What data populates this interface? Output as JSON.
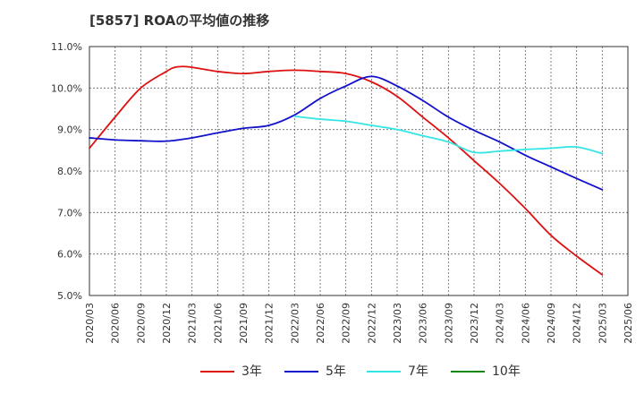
{
  "chart_data": {
    "type": "line",
    "title": "[5857]  ROAの平均値の推移",
    "xlabel": "",
    "ylabel": "",
    "ylim": [
      5.0,
      11.0
    ],
    "y_ticks": [
      "5.0%",
      "6.0%",
      "7.0%",
      "8.0%",
      "9.0%",
      "10.0%",
      "11.0%"
    ],
    "x_ticks": [
      "2020/03",
      "2020/06",
      "2020/09",
      "2020/12",
      "2021/03",
      "2021/06",
      "2021/09",
      "2021/12",
      "2022/03",
      "2022/06",
      "2022/09",
      "2022/12",
      "2023/03",
      "2023/06",
      "2023/09",
      "2023/12",
      "2024/03",
      "2024/06",
      "2024/09",
      "2024/12",
      "2025/03",
      "2025/06"
    ],
    "grid": true,
    "legend_position": "bottom",
    "series": [
      {
        "name": "3年",
        "color": "#dd1111",
        "x": [
          "2020/03",
          "2020/06",
          "2020/09",
          "2020/12",
          "2021/01",
          "2021/02",
          "2021/03",
          "2021/06",
          "2021/09",
          "2021/12",
          "2022/03",
          "2022/06",
          "2022/09",
          "2022/12",
          "2023/03",
          "2023/06",
          "2023/09",
          "2023/12",
          "2024/03",
          "2024/06",
          "2024/09",
          "2024/12",
          "2025/03"
        ],
        "values": [
          8.55,
          9.3,
          10.0,
          10.4,
          10.5,
          10.52,
          10.5,
          10.4,
          10.35,
          10.4,
          10.43,
          10.4,
          10.35,
          10.15,
          9.8,
          9.3,
          8.8,
          8.25,
          7.7,
          7.1,
          6.45,
          5.95,
          5.5
        ]
      },
      {
        "name": "5年",
        "color": "#1111cc",
        "x": [
          "2020/03",
          "2020/06",
          "2020/09",
          "2020/12",
          "2021/03",
          "2021/06",
          "2021/09",
          "2021/12",
          "2022/03",
          "2022/06",
          "2022/09",
          "2022/12",
          "2023/03",
          "2023/06",
          "2023/09",
          "2023/12",
          "2024/03",
          "2024/06",
          "2024/09",
          "2024/12",
          "2025/03"
        ],
        "values": [
          8.8,
          8.75,
          8.73,
          8.72,
          8.8,
          8.92,
          9.03,
          9.1,
          9.35,
          9.75,
          10.05,
          10.28,
          10.05,
          9.7,
          9.3,
          8.98,
          8.7,
          8.38,
          8.1,
          7.82,
          7.55
        ]
      },
      {
        "name": "7年",
        "color": "#33e5e5",
        "x": [
          "2022/03",
          "2022/06",
          "2022/09",
          "2022/12",
          "2023/03",
          "2023/06",
          "2023/09",
          "2023/12",
          "2024/03",
          "2024/06",
          "2024/09",
          "2024/12",
          "2025/03"
        ],
        "values": [
          9.32,
          9.25,
          9.2,
          9.1,
          9.0,
          8.85,
          8.7,
          8.45,
          8.48,
          8.52,
          8.55,
          8.58,
          8.42
        ]
      },
      {
        "name": "10年",
        "color": "#118811",
        "x": [],
        "values": []
      }
    ]
  }
}
